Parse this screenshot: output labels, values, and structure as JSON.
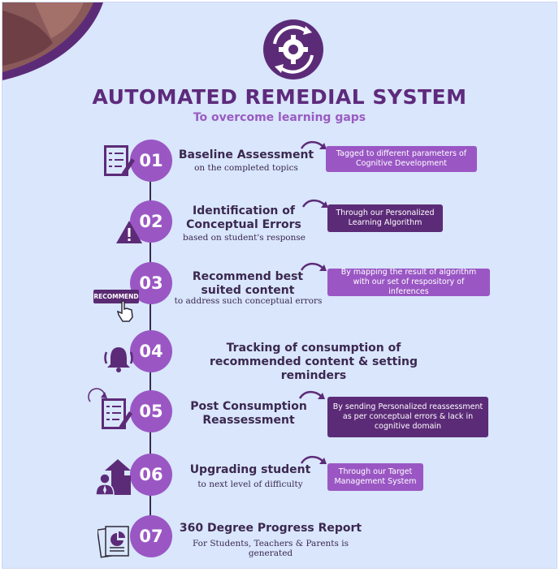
{
  "header": {
    "title": "AUTOMATED REMEDIAL SYSTEM",
    "subtitle": "To overcome learning gaps",
    "logo_icon": "gear-cycle-icon"
  },
  "colors": {
    "background": "#d9e6fb",
    "title": "#5e2a7c",
    "accent_light": "#9a57c4",
    "accent_dark": "#5c2b78",
    "text_dark": "#3b2850"
  },
  "steps": [
    {
      "number": "01",
      "title": "Baseline Assessment",
      "subtitle": "on the completed topics",
      "tag": "Tagged to different parameters of Cognitive Development",
      "icon": "checklist-pencil-icon"
    },
    {
      "number": "02",
      "title": "Identification of Conceptual Errors",
      "subtitle": "based on student's response",
      "tag": "Through our Personalized Learning Algorithm",
      "icon": "warning-triangle-icon"
    },
    {
      "number": "03",
      "title": "Recommend best suited content",
      "subtitle": "to address such conceptual errors",
      "tag": "By mapping the result of algorithm with our set of respository of inferences",
      "icon": "recommend-button-cursor-icon",
      "button_label": "RECOMMEND"
    },
    {
      "number": "04",
      "title": "Tracking of consumption of recommended content & setting reminders",
      "icon": "bell-ringing-icon"
    },
    {
      "number": "05",
      "title": "Post Consumption Reassessment",
      "tag": "By sending Personalized reassessment as per conceptual errors & lack in cognitive domain",
      "icon": "checklist-refresh-icon"
    },
    {
      "number": "06",
      "title": "Upgrading student",
      "subtitle": "to next level of difficulty",
      "tag": "Through our Target Management System",
      "icon": "student-growth-icon"
    },
    {
      "number": "07",
      "title": "360 Degree Progress Report",
      "subtitle": "For Students, Teachers & Parents is generated",
      "icon": "report-chart-icon"
    }
  ]
}
